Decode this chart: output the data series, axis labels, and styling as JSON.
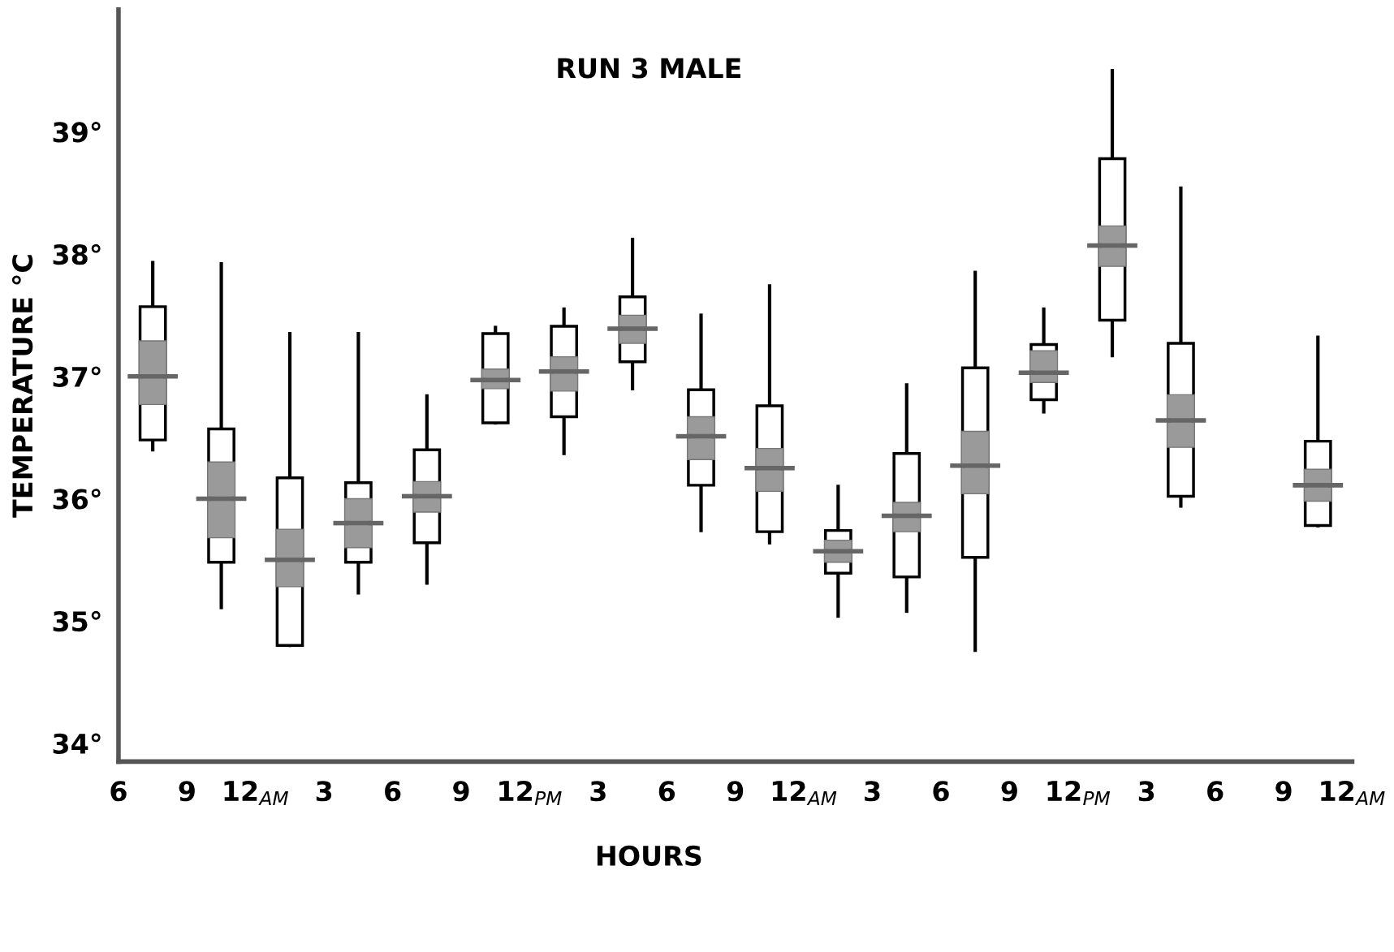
{
  "chart_data": {
    "type": "box",
    "title": "RUN 3 MALE",
    "xlabel": "HOURS",
    "ylabel": "TEMPERATURE °C",
    "categories": [
      null,
      null,
      null,
      null,
      null,
      null,
      null,
      null,
      null,
      null,
      null,
      null,
      null,
      null,
      null,
      null,
      null,
      null
    ],
    "annotations": [
      "6",
      "9",
      "12$_{AM}$",
      "3",
      "6",
      "9",
      "12$_{PM}$",
      "3",
      "6",
      "9",
      "12$_{AM}$",
      "3",
      "6",
      "9",
      "12$_{PM}$",
      "3",
      "6",
      "9",
      "12$_{AM}$"
    ],
    "series": [
      {
        "color": "#ffffff",
        "boxes": [
          {
            "low": 36.4,
            "q1": 36.48,
            "median": 37.0,
            "q3": 37.57,
            "high": 37.93
          },
          {
            "low": 35.11,
            "q1": 35.48,
            "median": 36.0,
            "q3": 36.57,
            "high": 37.92
          },
          {
            "low": 34.8,
            "q1": 34.8,
            "median": 35.5,
            "q3": 36.17,
            "high": 37.35
          },
          {
            "low": 35.23,
            "q1": 35.48,
            "median": 35.8,
            "q3": 36.13,
            "high": 37.35
          },
          {
            "low": 35.31,
            "q1": 35.64,
            "median": 36.02,
            "q3": 36.4,
            "high": 36.84
          },
          {
            "low": 36.62,
            "q1": 36.62,
            "median": 36.97,
            "q3": 37.35,
            "high": 37.4
          },
          {
            "low": 36.37,
            "q1": 36.67,
            "median": 37.04,
            "q3": 37.41,
            "high": 37.55
          },
          {
            "low": 36.9,
            "q1": 37.12,
            "median": 37.39,
            "q3": 37.65,
            "high": 38.12
          },
          {
            "low": 35.74,
            "q1": 36.11,
            "median": 36.51,
            "q3": 36.89,
            "high": 37.5
          },
          {
            "low": 35.64,
            "q1": 35.73,
            "median": 36.25,
            "q3": 36.76,
            "high": 37.74
          },
          {
            "low": 35.04,
            "q1": 35.39,
            "median": 35.57,
            "q3": 35.74,
            "high": 36.1
          },
          {
            "low": 35.08,
            "q1": 35.36,
            "median": 35.86,
            "q3": 36.37,
            "high": 36.93
          },
          {
            "low": 34.76,
            "q1": 35.52,
            "median": 36.27,
            "q3": 37.07,
            "high": 37.85
          },
          {
            "low": 36.71,
            "q1": 36.81,
            "median": 37.03,
            "q3": 37.26,
            "high": 37.55
          },
          {
            "low": 37.17,
            "q1": 37.46,
            "median": 38.07,
            "q3": 38.78,
            "high": 39.5
          },
          {
            "low": 35.94,
            "q1": 36.02,
            "median": 36.64,
            "q3": 37.27,
            "high": 38.54
          },
          null,
          {
            "low": 35.78,
            "q1": 35.78,
            "median": 36.11,
            "q3": 36.47,
            "high": 37.32
          }
        ]
      },
      {
        "type": "bar",
        "color": "#9a9a9a",
        "values": [
          0.52,
          0.62,
          0.47,
          0.4,
          0.25,
          0.16,
          0.28,
          0.23,
          0.35,
          0.35,
          0.18,
          0.24,
          0.51,
          0.26,
          0.33,
          0.43,
          null,
          0.26
        ],
        "base": [
          36.77,
          35.68,
          35.28,
          35.6,
          35.89,
          36.9,
          36.88,
          37.27,
          36.32,
          36.06,
          35.48,
          35.73,
          36.04,
          36.95,
          37.9,
          36.42,
          null,
          35.98
        ]
      }
    ],
    "ylim": [
      33.85,
      40.0
    ],
    "yticks": [
      {
        "value": 34,
        "label": "34°"
      },
      {
        "value": 35,
        "label": "35°"
      },
      {
        "value": 36,
        "label": "36°"
      },
      {
        "value": 37,
        "label": "37°"
      },
      {
        "value": 38,
        "label": "38°"
      },
      {
        "value": 39,
        "label": "39°"
      }
    ],
    "grid": false,
    "legend": false
  }
}
